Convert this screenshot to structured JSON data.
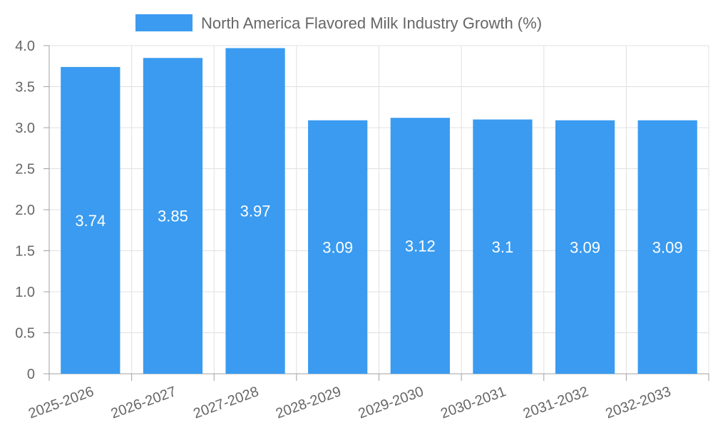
{
  "chart_data": {
    "type": "bar",
    "categories": [
      "2025-2026",
      "2026-2027",
      "2027-2028",
      "2028-2029",
      "2029-2030",
      "2030-2031",
      "2031-2032",
      "2032-2033"
    ],
    "series": [
      {
        "name": "North America Flavored Milk Industry Growth (%)",
        "values": [
          3.74,
          3.85,
          3.97,
          3.09,
          3.12,
          3.1,
          3.09,
          3.09
        ],
        "data_labels": [
          "3.74",
          "3.85",
          "3.97",
          "3.09",
          "3.12",
          "3.1",
          "3.09",
          "3.09"
        ]
      }
    ],
    "ylim": [
      0,
      4.0
    ],
    "yticks": [
      "0",
      "0.5",
      "1.0",
      "1.5",
      "2.0",
      "2.5",
      "3.0",
      "3.5",
      "4.0"
    ],
    "ytick_values": [
      0,
      0.5,
      1.0,
      1.5,
      2.0,
      2.5,
      3.0,
      3.5,
      4.0
    ],
    "grid": true,
    "legend_position": "top",
    "colors": {
      "bar": "#3a9bf0",
      "grid": "#e0e0e0",
      "axis": "#a0a0a0",
      "text": "#666666",
      "label": "#ffffff"
    }
  }
}
